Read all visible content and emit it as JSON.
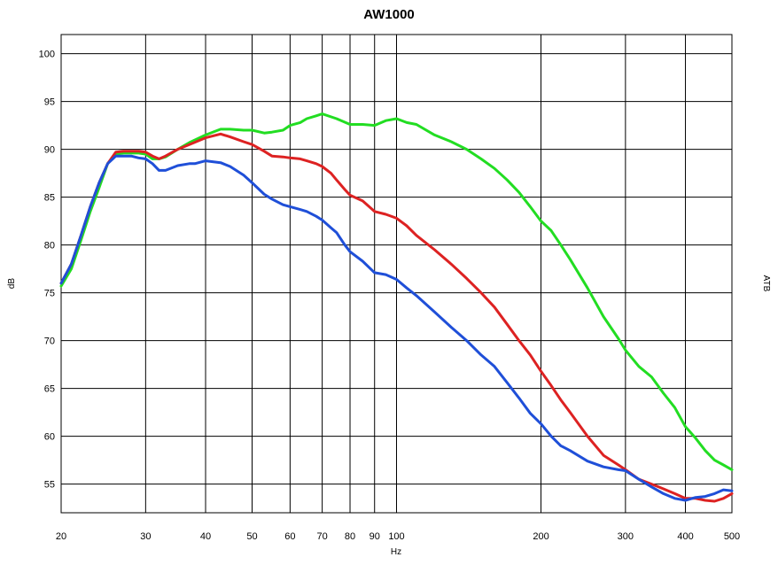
{
  "chart_data": {
    "type": "line",
    "title": "AW1000",
    "xlabel": "Hz",
    "ylabel": "dB",
    "y2label": "ATB",
    "xscale": "log",
    "xlim": [
      20,
      500
    ],
    "ylim": [
      52,
      102
    ],
    "grid": true,
    "x_ticks": [
      20,
      30,
      40,
      50,
      60,
      70,
      80,
      90,
      100,
      200,
      300,
      400,
      500
    ],
    "y_ticks": [
      55,
      60,
      65,
      70,
      75,
      80,
      85,
      90,
      95,
      100
    ],
    "series": [
      {
        "color": "#22dd22",
        "x": [
          20,
          21,
          22,
          23,
          24,
          25,
          26,
          27,
          28,
          29,
          30,
          31,
          32,
          33,
          35,
          37,
          40,
          43,
          45,
          48,
          50,
          53,
          55,
          58,
          60,
          63,
          65,
          68,
          70,
          75,
          80,
          85,
          90,
          95,
          100,
          105,
          110,
          120,
          130,
          140,
          150,
          160,
          170,
          180,
          190,
          200,
          210,
          220,
          230,
          250,
          270,
          290,
          300,
          320,
          340,
          360,
          380,
          400,
          420,
          440,
          460,
          480,
          500
        ],
        "values": [
          75.7,
          77.5,
          80.5,
          83.5,
          86.0,
          88.5,
          89.5,
          89.6,
          89.6,
          89.6,
          89.5,
          89.0,
          89.0,
          89.2,
          90.0,
          90.7,
          91.5,
          92.1,
          92.1,
          92.0,
          92.0,
          91.7,
          91.8,
          92.0,
          92.5,
          92.8,
          93.2,
          93.5,
          93.7,
          93.2,
          92.6,
          92.6,
          92.5,
          93.0,
          93.2,
          92.8,
          92.6,
          91.5,
          90.8,
          90.0,
          89.0,
          88.0,
          86.8,
          85.5,
          84.0,
          82.5,
          81.5,
          80.0,
          78.5,
          75.5,
          72.5,
          70.2,
          69.0,
          67.3,
          66.2,
          64.5,
          63.0,
          61.0,
          59.8,
          58.5,
          57.5,
          57.0,
          56.5
        ]
      },
      {
        "color": "#dd2222",
        "x": [
          20,
          21,
          22,
          23,
          24,
          25,
          26,
          27,
          28,
          29,
          30,
          31,
          32,
          33,
          35,
          37,
          40,
          43,
          45,
          48,
          50,
          53,
          55,
          58,
          60,
          63,
          65,
          68,
          70,
          73,
          75,
          78,
          80,
          85,
          90,
          95,
          100,
          105,
          110,
          120,
          130,
          140,
          150,
          160,
          170,
          180,
          190,
          200,
          210,
          220,
          230,
          250,
          270,
          290,
          300,
          320,
          340,
          360,
          380,
          400,
          420,
          440,
          460,
          480,
          500
        ],
        "values": [
          76.0,
          78.0,
          81.0,
          84.0,
          86.5,
          88.5,
          89.7,
          89.8,
          89.8,
          89.8,
          89.7,
          89.3,
          89.0,
          89.3,
          90.0,
          90.5,
          91.2,
          91.6,
          91.3,
          90.8,
          90.5,
          89.8,
          89.3,
          89.2,
          89.1,
          89.0,
          88.8,
          88.5,
          88.2,
          87.5,
          86.8,
          85.8,
          85.2,
          84.6,
          83.5,
          83.2,
          82.8,
          82.0,
          81.0,
          79.5,
          78.0,
          76.5,
          75.0,
          73.5,
          71.7,
          70.0,
          68.5,
          66.8,
          65.3,
          63.8,
          62.5,
          60.0,
          58.0,
          57.0,
          56.5,
          55.5,
          55.0,
          54.5,
          54.0,
          53.5,
          53.5,
          53.3,
          53.2,
          53.5,
          54.0
        ]
      },
      {
        "color": "#1f4fd8",
        "x": [
          20,
          21,
          22,
          23,
          24,
          25,
          26,
          27,
          28,
          29,
          30,
          31,
          32,
          33,
          35,
          37,
          38,
          40,
          43,
          45,
          48,
          50,
          53,
          55,
          58,
          60,
          63,
          65,
          68,
          70,
          73,
          75,
          78,
          80,
          85,
          90,
          95,
          100,
          105,
          110,
          120,
          130,
          140,
          150,
          160,
          170,
          180,
          190,
          200,
          210,
          220,
          230,
          250,
          270,
          290,
          300,
          320,
          340,
          360,
          380,
          400,
          420,
          440,
          460,
          480,
          500
        ],
        "values": [
          76.0,
          78.0,
          81.0,
          84.0,
          86.5,
          88.5,
          89.3,
          89.3,
          89.3,
          89.1,
          89.0,
          88.5,
          87.8,
          87.8,
          88.3,
          88.5,
          88.5,
          88.8,
          88.6,
          88.2,
          87.3,
          86.5,
          85.3,
          84.8,
          84.2,
          84.0,
          83.7,
          83.5,
          83.0,
          82.6,
          81.8,
          81.3,
          80.0,
          79.3,
          78.3,
          77.1,
          76.9,
          76.4,
          75.5,
          74.7,
          73.0,
          71.4,
          70.0,
          68.5,
          67.3,
          65.6,
          64.0,
          62.4,
          61.3,
          60.0,
          59.0,
          58.5,
          57.4,
          56.8,
          56.5,
          56.4,
          55.5,
          54.7,
          54.0,
          53.5,
          53.3,
          53.6,
          53.7,
          54.0,
          54.4,
          54.3
        ]
      }
    ]
  }
}
